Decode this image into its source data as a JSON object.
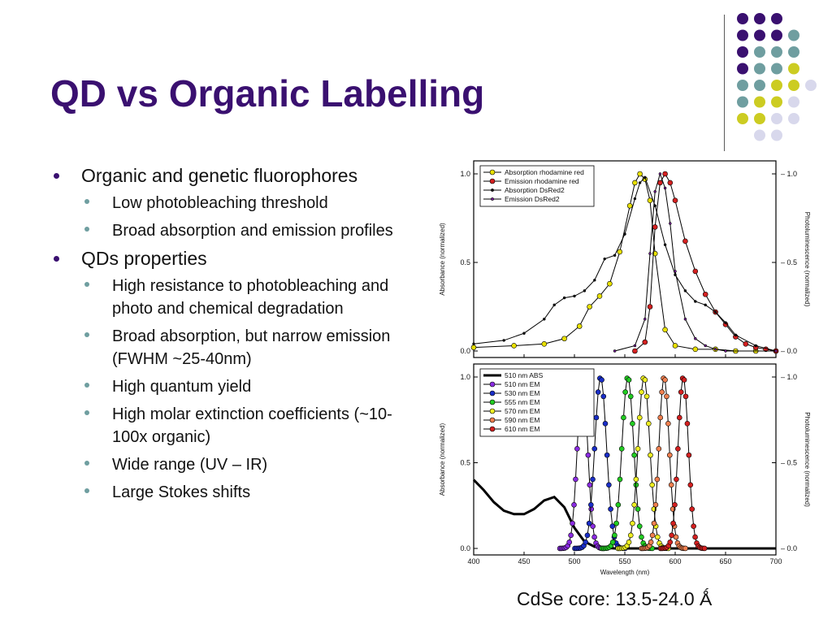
{
  "slide": {
    "title": "QD vs Organic Labelling",
    "caption": "CdSe core: 13.5-24.0 Ǻ",
    "bullets": [
      {
        "text": "Organic and genetic fluorophores",
        "sub": [
          "Low photobleaching threshold",
          "Broad absorption and emission profiles"
        ]
      },
      {
        "text": "QDs properties",
        "sub": [
          "High resistance to photobleaching and photo and chemical degradation",
          "Broad absorption, but narrow emission (FWHM ~25-40nm)",
          "High quantum yield",
          "High molar extinction coefficients (~10-100x organic)",
          "Wide range (UV – IR)",
          "Large Stokes shifts"
        ]
      }
    ]
  },
  "colors": {
    "title": "#3a1070",
    "bullet_l1": "#3a1070",
    "bullet_l2": "#6f9ea0",
    "dots": [
      "#3a1070",
      "#6f9ea0",
      "#cccc22",
      "#d8d8ec"
    ]
  },
  "chart_data": [
    {
      "type": "line",
      "ylabel": "Absorbance (normalized)",
      "y2label": "Photoluminescence (normalized)",
      "xlim": [
        400,
        700
      ],
      "ylim": [
        0,
        1.0
      ],
      "yticks": [
        "0.0",
        "0.5",
        "1.0"
      ],
      "y2ticks": [
        "0.0",
        "0.5",
        "1.0"
      ],
      "legend": "top-left",
      "series": [
        {
          "name": "Absorption rhodamine red",
          "color": "#e8e000",
          "marker": "circle",
          "x": [
            400,
            440,
            470,
            490,
            505,
            515,
            525,
            535,
            545,
            555,
            560,
            565,
            570,
            575,
            580,
            590,
            600,
            620,
            640,
            660,
            680,
            700
          ],
          "y": [
            0.02,
            0.03,
            0.04,
            0.07,
            0.14,
            0.25,
            0.31,
            0.38,
            0.56,
            0.82,
            0.95,
            1.0,
            0.97,
            0.85,
            0.55,
            0.12,
            0.03,
            0.01,
            0.01,
            0.0,
            0.0,
            0.0
          ]
        },
        {
          "name": "Emission rhodamine red",
          "color": "#d42020",
          "marker": "circle",
          "x": [
            560,
            570,
            575,
            580,
            585,
            590,
            595,
            600,
            610,
            620,
            630,
            640,
            650,
            660,
            670,
            680,
            690,
            700
          ],
          "y": [
            0.0,
            0.05,
            0.25,
            0.7,
            0.95,
            1.0,
            0.95,
            0.85,
            0.62,
            0.45,
            0.32,
            0.22,
            0.15,
            0.08,
            0.04,
            0.02,
            0.01,
            0.0
          ]
        },
        {
          "name": "Absorption DsRed2",
          "color": "#111111",
          "marker": "dot",
          "x": [
            400,
            430,
            450,
            470,
            480,
            490,
            500,
            510,
            520,
            530,
            540,
            550,
            560,
            565,
            570,
            580,
            590,
            600,
            610,
            620,
            630,
            640,
            650,
            660,
            680,
            700
          ],
          "y": [
            0.04,
            0.06,
            0.1,
            0.18,
            0.26,
            0.3,
            0.31,
            0.34,
            0.4,
            0.52,
            0.54,
            0.66,
            0.86,
            0.95,
            0.98,
            0.82,
            0.6,
            0.43,
            0.34,
            0.28,
            0.26,
            0.22,
            0.16,
            0.09,
            0.03,
            0.0
          ]
        },
        {
          "name": "Emission DsRed2",
          "color": "#7a1a9a",
          "marker": "dot",
          "x": [
            540,
            560,
            570,
            575,
            580,
            585,
            590,
            595,
            600,
            610,
            620,
            630,
            640,
            650,
            700
          ],
          "y": [
            0.0,
            0.03,
            0.18,
            0.55,
            0.9,
            1.0,
            0.92,
            0.72,
            0.45,
            0.18,
            0.07,
            0.03,
            0.01,
            0.0,
            0.0
          ]
        }
      ]
    },
    {
      "type": "line",
      "xlabel": "Wavelength (nm)",
      "ylabel": "Absorbance (normalized)",
      "y2label": "Photoluminescence (normalized)",
      "xlim": [
        400,
        700
      ],
      "ylim": [
        0,
        1.0
      ],
      "xticks": [
        "400",
        "450",
        "500",
        "550",
        "600",
        "650",
        "700"
      ],
      "yticks": [
        "0.0",
        "0.5",
        "1.0"
      ],
      "y2ticks": [
        "0.0",
        "0.5",
        "1.0"
      ],
      "legend": "top-left",
      "series": [
        {
          "name": "510 nm ABS",
          "color": "#000000",
          "marker": "none",
          "x": [
            400,
            410,
            420,
            430,
            440,
            450,
            460,
            470,
            480,
            490,
            500,
            510,
            520,
            540,
            560,
            600,
            650,
            700
          ],
          "y": [
            0.4,
            0.34,
            0.27,
            0.22,
            0.2,
            0.2,
            0.23,
            0.28,
            0.3,
            0.24,
            0.12,
            0.04,
            0.01,
            0.0,
            0.0,
            0.0,
            0.0,
            0.0
          ]
        },
        {
          "name": "510 nm EM",
          "color": "#8a2be2",
          "center": 508,
          "width": 7
        },
        {
          "name": "530 nm EM",
          "color": "#1a2ec8",
          "center": 526,
          "width": 8
        },
        {
          "name": "555 nm EM",
          "color": "#22cc22",
          "center": 553,
          "width": 8
        },
        {
          "name": "570 nm EM",
          "color": "#eeee22",
          "center": 569,
          "width": 8
        },
        {
          "name": "590 nm EM",
          "color": "#f08050",
          "center": 589,
          "width": 7
        },
        {
          "name": "610 nm EM",
          "color": "#d42020",
          "center": 608,
          "width": 7
        }
      ]
    }
  ]
}
